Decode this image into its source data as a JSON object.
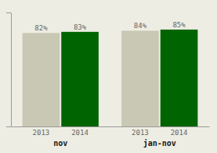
{
  "chart_data": {
    "type": "bar",
    "categories": [
      "nov",
      "jan-nov"
    ],
    "series": [
      {
        "name": "2013",
        "color": "#c8c8b4",
        "values": [
          82,
          84
        ],
        "value_labels": [
          "82%",
          "84%"
        ]
      },
      {
        "name": "2014",
        "color": "#006400",
        "values": [
          83,
          85
        ],
        "value_labels": [
          "83%",
          "85%"
        ]
      }
    ],
    "ylim": [
      0,
      100
    ],
    "yticks": [
      0,
      100
    ],
    "data_labels": true,
    "tick_labels": false
  }
}
